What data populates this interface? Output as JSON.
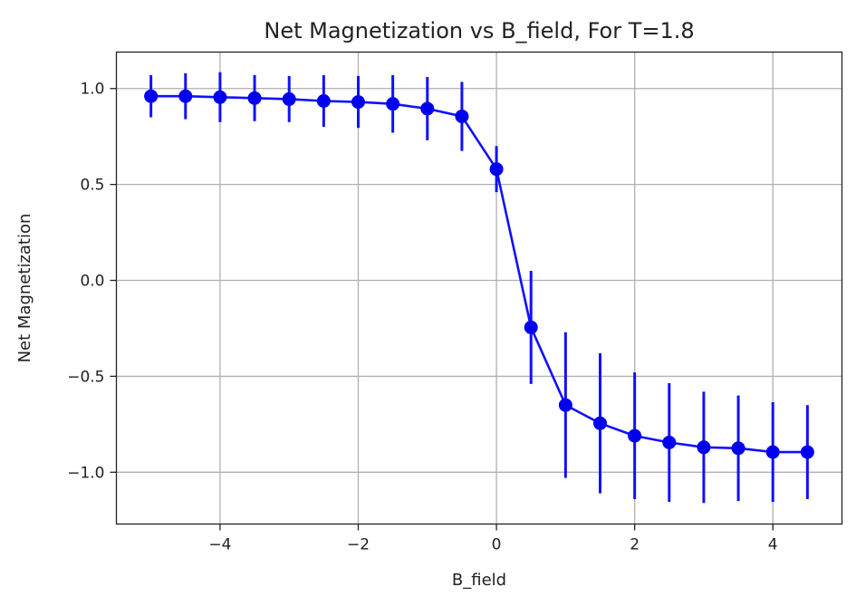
{
  "chart_data": {
    "type": "line",
    "title": "Net Magnetization vs B_field, For T=1.8",
    "xlabel": "B_field",
    "ylabel": "Net Magnetization",
    "xlim": [
      -5.5,
      5.0
    ],
    "ylim": [
      -1.27,
      1.19
    ],
    "xticks": [
      -4,
      -2,
      0,
      2,
      4
    ],
    "xtick_labels": [
      "−4",
      "−2",
      "0",
      "2",
      "4"
    ],
    "yticks": [
      1.0,
      0.5,
      0.0,
      -0.5,
      -1.0
    ],
    "ytick_labels": [
      "1.0",
      "0.5",
      "0.0",
      "−0.5",
      "−1.0"
    ],
    "grid": true,
    "series": [
      {
        "color": "#1010ff",
        "marker_color": "#0000ee",
        "x": [
          -5.0,
          -4.5,
          -4.0,
          -3.5,
          -3.0,
          -2.5,
          -2.0,
          -1.5,
          -1.0,
          -0.5,
          0.0,
          0.5,
          1.0,
          1.5,
          2.0,
          2.5,
          3.0,
          3.5,
          4.0,
          4.5
        ],
        "y": [
          0.96,
          0.96,
          0.955,
          0.95,
          0.945,
          0.935,
          0.93,
          0.92,
          0.895,
          0.855,
          0.58,
          -0.245,
          -0.65,
          -0.745,
          -0.81,
          -0.845,
          -0.87,
          -0.875,
          -0.895,
          -0.895
        ],
        "yerr": [
          0.11,
          0.12,
          0.13,
          0.12,
          0.12,
          0.135,
          0.135,
          0.15,
          0.165,
          0.18,
          0.12,
          0.295,
          0.38,
          0.365,
          0.33,
          0.31,
          0.29,
          0.275,
          0.26,
          0.245
        ]
      }
    ]
  }
}
